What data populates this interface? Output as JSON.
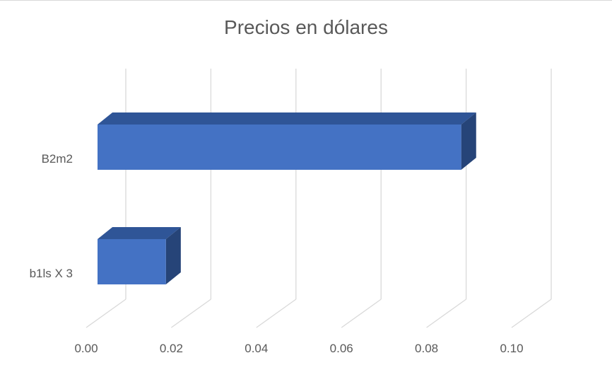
{
  "chart_data": {
    "type": "bar",
    "orientation": "horizontal",
    "style": "3d-clustered",
    "title": "Precios en dólares",
    "categories": [
      "B2m2",
      "b1ls X 3"
    ],
    "series": [
      {
        "values": [
          0.083,
          0.0156
        ]
      }
    ],
    "xlim": [
      0,
      0.1
    ],
    "xticks": [
      "0.00",
      "0.02",
      "0.04",
      "0.06",
      "0.08",
      "0.10"
    ],
    "xlabel": "",
    "ylabel": "",
    "grid": true,
    "legend": "none",
    "colors": {
      "front": "#4472c4",
      "top": "#2f5597",
      "side": "#264478",
      "grid": "#d9d9d9",
      "text": "#595959"
    }
  }
}
